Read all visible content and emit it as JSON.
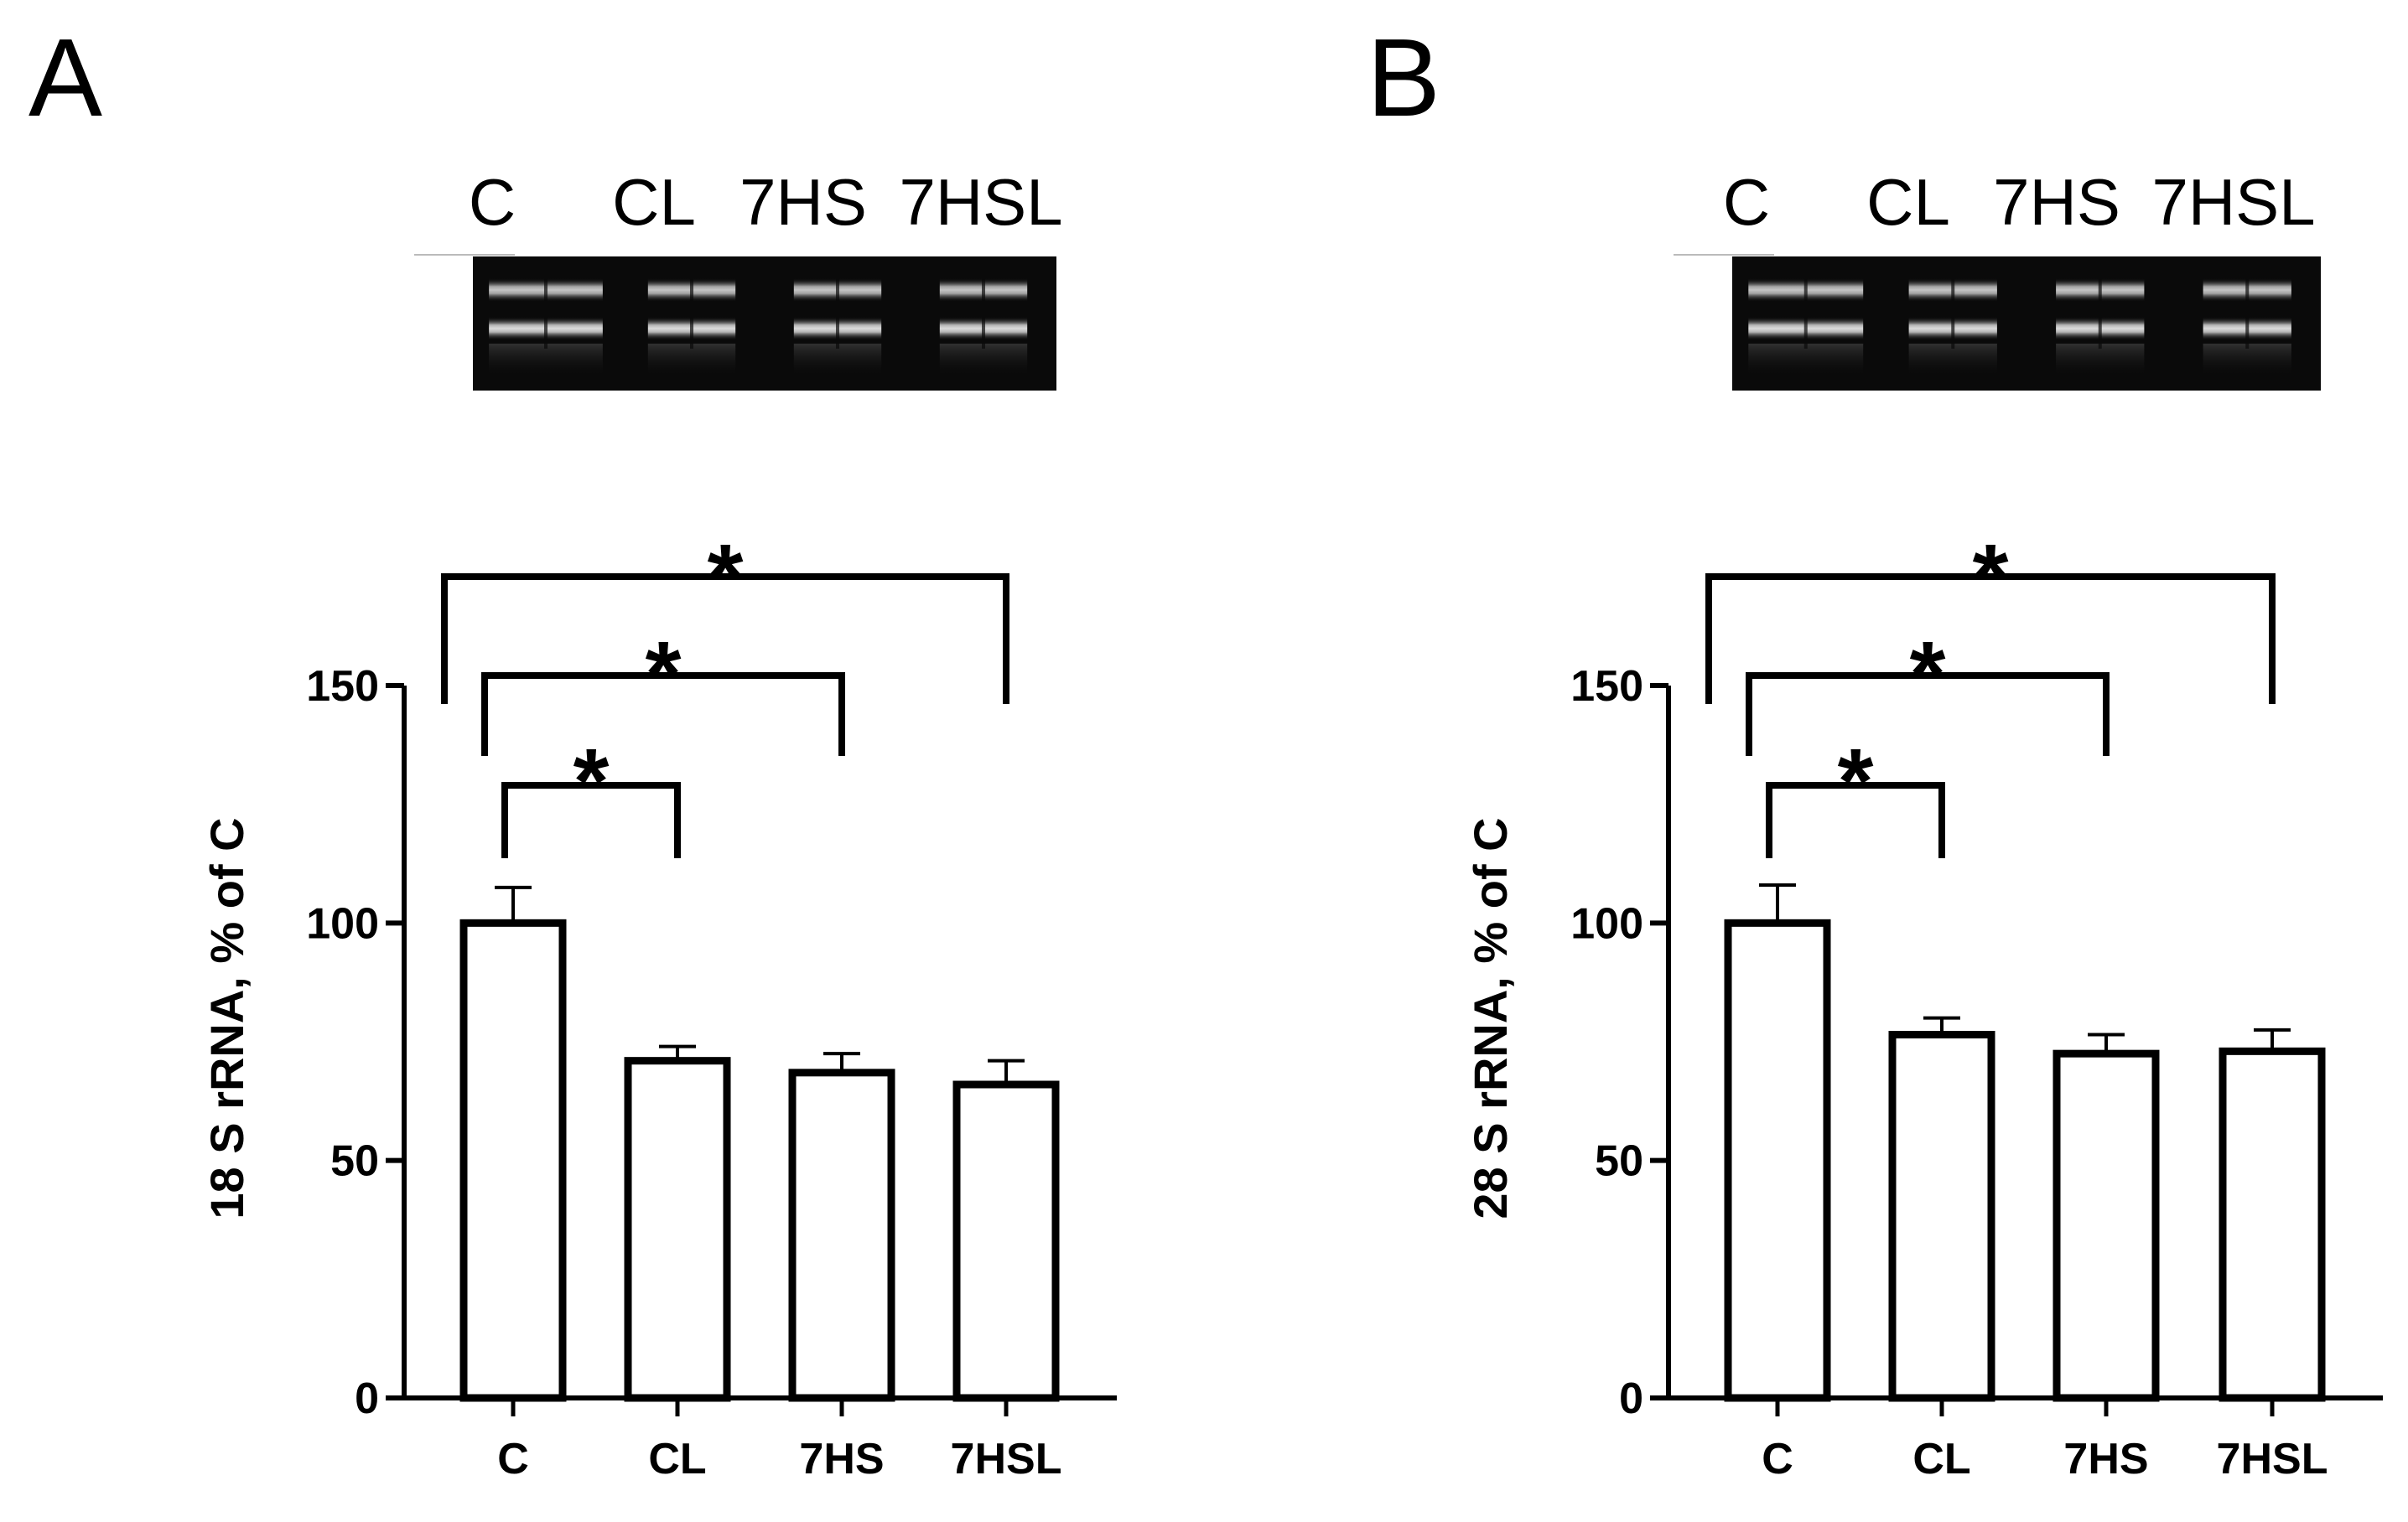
{
  "colors": {
    "bar_fill": "#ffffff",
    "bar_stroke": "#000000",
    "gel_background": "#0a0a0a",
    "gel_band": "#d4d4d4"
  },
  "chart_data": [
    {
      "type": "bar",
      "panel": "A",
      "gel_lanes": [
        "C",
        "CL",
        "7HS",
        "7HSL"
      ],
      "categories": [
        "C",
        "CL",
        "7HS",
        "7HSL"
      ],
      "values": [
        100,
        71,
        68.5,
        66
      ],
      "errors": [
        7.5,
        3,
        4,
        5
      ],
      "ylabel": "18 S rRNA, % of C",
      "ylim": [
        0,
        150
      ],
      "yticks": [
        0,
        50,
        100,
        150
      ],
      "significance": [
        {
          "from": 0,
          "to": 1,
          "label": "*"
        },
        {
          "from": 0,
          "to": 2,
          "label": "*"
        },
        {
          "from": 0,
          "to": 3,
          "label": "*"
        }
      ]
    },
    {
      "type": "bar",
      "panel": "B",
      "gel_lanes": [
        "C",
        "CL",
        "7HS",
        "7HSL"
      ],
      "categories": [
        "C",
        "CL",
        "7HS",
        "7HSL"
      ],
      "values": [
        100,
        76.5,
        72.5,
        73
      ],
      "errors": [
        8,
        3.5,
        4,
        4.5
      ],
      "ylabel": "28 S rRNA, % of C",
      "ylim": [
        0,
        150
      ],
      "yticks": [
        0,
        50,
        100,
        150
      ],
      "significance": [
        {
          "from": 0,
          "to": 1,
          "label": "*"
        },
        {
          "from": 0,
          "to": 2,
          "label": "*"
        },
        {
          "from": 0,
          "to": 3,
          "label": "*"
        }
      ]
    }
  ]
}
